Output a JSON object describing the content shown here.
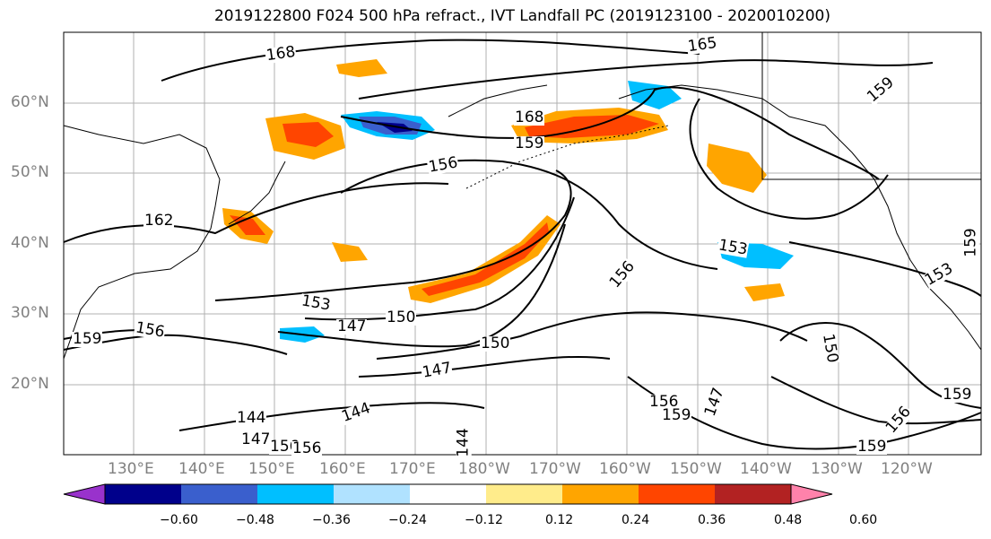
{
  "title": "2019122800 F024 500 hPa refract., IVT Landfall PC (2019123100 - 2020010200)",
  "lat_labels": [
    "60°N",
    "50°N",
    "40°N",
    "30°N",
    "20°N"
  ],
  "lon_labels": [
    "130°E",
    "140°E",
    "150°E",
    "160°E",
    "170°E",
    "180°W",
    "170°W",
    "160°W",
    "150°W",
    "140°W",
    "130°W",
    "120°W"
  ],
  "contour_labels": [
    "168",
    "165",
    "159",
    "168",
    "159",
    "156",
    "162",
    "153",
    "153",
    "150",
    "147",
    "156",
    "159",
    "150",
    "147",
    "156",
    "153",
    "159",
    "150",
    "156",
    "144",
    "144",
    "144",
    "147",
    "156",
    "159",
    "147",
    "159",
    "156",
    "159",
    "156"
  ],
  "colorbar": {
    "ticks": [
      "−0.60",
      "−0.48",
      "−0.36",
      "−0.24",
      "−0.12",
      "0.12",
      "0.24",
      "0.36",
      "0.48",
      "0.60"
    ],
    "colors": [
      "#9932cc",
      "#00008b",
      "#3a5fcd",
      "#00bfff",
      "#b0e2ff",
      "#ffffff",
      "#ffec8b",
      "#ffa500",
      "#ff4500",
      "#b22222",
      "#ff82ab"
    ]
  }
}
